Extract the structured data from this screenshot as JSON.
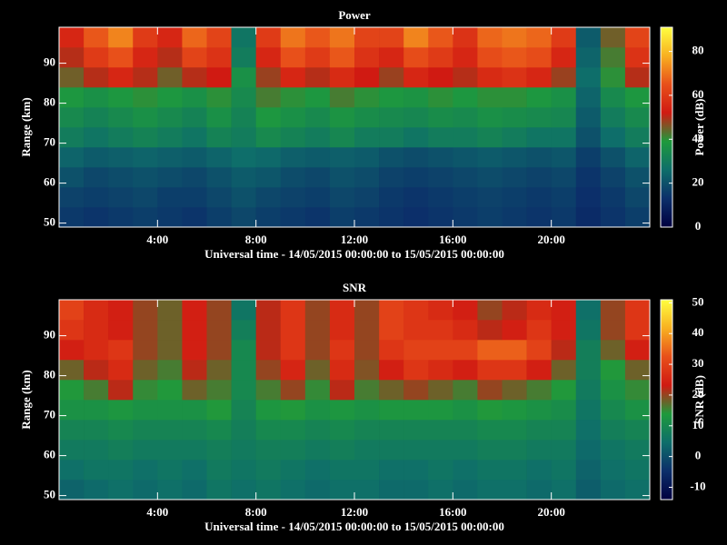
{
  "chart_data": [
    {
      "type": "heatmap",
      "title": "Power",
      "xlabel": "Universal time - 14/05/2015 00:00:00 to 15/05/2015 00:00:00",
      "ylabel": "Range (km)",
      "colorbar_label": "Power (dB)",
      "xlim": [
        0,
        24
      ],
      "ylim": [
        49,
        99
      ],
      "clim": [
        0,
        91
      ],
      "xticks": [
        {
          "value": 4,
          "label": "4:00"
        },
        {
          "value": 8,
          "label": "8:00"
        },
        {
          "value": 12,
          "label": "12:00"
        },
        {
          "value": 16,
          "label": "16:00"
        },
        {
          "value": 20,
          "label": "20:00"
        }
      ],
      "yticks": [
        50,
        60,
        70,
        80,
        90
      ],
      "cticks": [
        0,
        20,
        40,
        60,
        80
      ],
      "colorscale": [
        "#000040",
        "#0c2f6a",
        "#0e6e6a",
        "#1e9a3c",
        "#d01a12",
        "#e8501a",
        "#f8b020",
        "#ffff40"
      ],
      "x": [
        0.5,
        1.5,
        2.5,
        3.5,
        4.5,
        5.5,
        6.5,
        7.5,
        8.5,
        9.5,
        10.5,
        11.5,
        12.5,
        13.5,
        14.5,
        15.5,
        16.5,
        17.5,
        18.5,
        19.5,
        20.5,
        21.5,
        22.5,
        23.5
      ],
      "y": [
        51.5,
        56.5,
        61.5,
        66.5,
        71.5,
        76.5,
        81.5,
        86.5,
        91.5,
        96.5
      ],
      "z": [
        [
          15,
          14,
          15,
          16,
          15,
          14,
          16,
          18,
          16,
          15,
          14,
          16,
          15,
          14,
          13,
          14,
          15,
          16,
          15,
          14,
          15,
          12,
          14,
          16
        ],
        [
          17,
          16,
          17,
          18,
          16,
          16,
          18,
          20,
          18,
          17,
          16,
          18,
          17,
          15,
          14,
          15,
          16,
          17,
          16,
          15,
          16,
          13,
          15,
          18
        ],
        [
          20,
          18,
          19,
          20,
          19,
          18,
          20,
          22,
          21,
          19,
          18,
          20,
          19,
          17,
          16,
          17,
          18,
          19,
          18,
          17,
          18,
          14,
          17,
          20
        ],
        [
          24,
          22,
          23,
          24,
          23,
          22,
          24,
          26,
          25,
          23,
          22,
          23,
          22,
          20,
          19,
          20,
          21,
          22,
          21,
          20,
          21,
          16,
          20,
          24
        ],
        [
          30,
          28,
          30,
          32,
          30,
          28,
          32,
          30,
          34,
          32,
          30,
          33,
          30,
          30,
          28,
          30,
          30,
          32,
          30,
          28,
          28,
          20,
          26,
          30
        ],
        [
          34,
          32,
          34,
          36,
          34,
          32,
          36,
          32,
          38,
          36,
          34,
          37,
          35,
          34,
          33,
          35,
          34,
          36,
          35,
          34,
          33,
          22,
          30,
          34
        ],
        [
          38,
          36,
          38,
          40,
          38,
          36,
          40,
          34,
          42,
          40,
          38,
          42,
          40,
          38,
          37,
          40,
          38,
          40,
          40,
          38,
          36,
          24,
          34,
          38
        ],
        [
          45,
          50,
          55,
          50,
          45,
          50,
          52,
          36,
          48,
          55,
          50,
          56,
          52,
          48,
          55,
          52,
          50,
          56,
          58,
          55,
          48,
          26,
          40,
          50
        ],
        [
          50,
          60,
          65,
          55,
          50,
          62,
          58,
          30,
          55,
          65,
          60,
          66,
          58,
          55,
          64,
          60,
          55,
          64,
          66,
          64,
          55,
          24,
          42,
          58
        ],
        [
          55,
          66,
          72,
          60,
          55,
          68,
          62,
          28,
          60,
          70,
          66,
          70,
          62,
          62,
          72,
          66,
          58,
          68,
          70,
          68,
          60,
          22,
          45,
          62
        ]
      ]
    },
    {
      "type": "heatmap",
      "title": "SNR",
      "xlabel": "Universal time - 14/05/2015 00:00:00 to 15/05/2015 00:00:00",
      "ylabel": "Range (km)",
      "colorbar_label": "SNR (dB)",
      "xlim": [
        0,
        24
      ],
      "ylim": [
        49,
        99
      ],
      "clim": [
        -14,
        51
      ],
      "xticks": [
        {
          "value": 4,
          "label": "4:00"
        },
        {
          "value": 8,
          "label": "8:00"
        },
        {
          "value": 12,
          "label": "12:00"
        },
        {
          "value": 16,
          "label": "16:00"
        },
        {
          "value": 20,
          "label": "20:00"
        }
      ],
      "yticks": [
        50,
        60,
        70,
        80,
        90
      ],
      "cticks": [
        -10,
        0,
        10,
        20,
        30,
        40,
        50
      ],
      "colorscale": [
        "#000040",
        "#0c2f6a",
        "#0e6e6a",
        "#1e9a3c",
        "#d01a12",
        "#e8501a",
        "#f8b020",
        "#ffff40"
      ],
      "x": [
        0.5,
        1.5,
        2.5,
        3.5,
        4.5,
        5.5,
        6.5,
        7.5,
        8.5,
        9.5,
        10.5,
        11.5,
        12.5,
        13.5,
        14.5,
        15.5,
        16.5,
        17.5,
        18.5,
        19.5,
        20.5,
        21.5,
        22.5,
        23.5
      ],
      "y": [
        51.5,
        56.5,
        61.5,
        66.5,
        71.5,
        76.5,
        81.5,
        86.5,
        91.5,
        96.5
      ],
      "z": [
        [
          3,
          4,
          5,
          4,
          5,
          4,
          6,
          5,
          6,
          5,
          4,
          5,
          5,
          4,
          4,
          5,
          4,
          5,
          5,
          4,
          5,
          2,
          4,
          5
        ],
        [
          5,
          6,
          6,
          5,
          6,
          5,
          7,
          6,
          7,
          6,
          5,
          6,
          6,
          5,
          5,
          6,
          5,
          6,
          6,
          5,
          6,
          3,
          5,
          6
        ],
        [
          7,
          7,
          8,
          7,
          7,
          7,
          8,
          7,
          8,
          8,
          7,
          8,
          7,
          7,
          7,
          7,
          7,
          8,
          8,
          7,
          7,
          4,
          6,
          7
        ],
        [
          9,
          9,
          10,
          9,
          9,
          9,
          10,
          8,
          10,
          10,
          9,
          10,
          9,
          9,
          9,
          9,
          9,
          10,
          10,
          9,
          9,
          5,
          8,
          9
        ],
        [
          12,
          12,
          13,
          12,
          12,
          12,
          14,
          9,
          13,
          14,
          12,
          13,
          12,
          13,
          13,
          13,
          12,
          14,
          13,
          12,
          11,
          6,
          10,
          12
        ],
        [
          14,
          16,
          22,
          15,
          14,
          18,
          16,
          10,
          16,
          20,
          15,
          22,
          16,
          18,
          20,
          18,
          16,
          20,
          18,
          16,
          14,
          7,
          12,
          15
        ],
        [
          18,
          22,
          26,
          18,
          16,
          22,
          18,
          10,
          20,
          25,
          18,
          26,
          19,
          24,
          28,
          26,
          24,
          28,
          28,
          24,
          18,
          8,
          14,
          18
        ],
        [
          24,
          26,
          28,
          20,
          18,
          24,
          20,
          10,
          22,
          28,
          20,
          28,
          20,
          28,
          30,
          30,
          30,
          34,
          34,
          30,
          22,
          8,
          18,
          24
        ],
        [
          28,
          26,
          24,
          20,
          18,
          24,
          20,
          8,
          22,
          28,
          20,
          26,
          20,
          30,
          28,
          28,
          26,
          22,
          24,
          28,
          24,
          6,
          20,
          28
        ],
        [
          30,
          26,
          24,
          20,
          18,
          24,
          20,
          6,
          22,
          28,
          20,
          26,
          20,
          30,
          28,
          26,
          24,
          20,
          22,
          26,
          24,
          5,
          20,
          28
        ]
      ]
    }
  ]
}
